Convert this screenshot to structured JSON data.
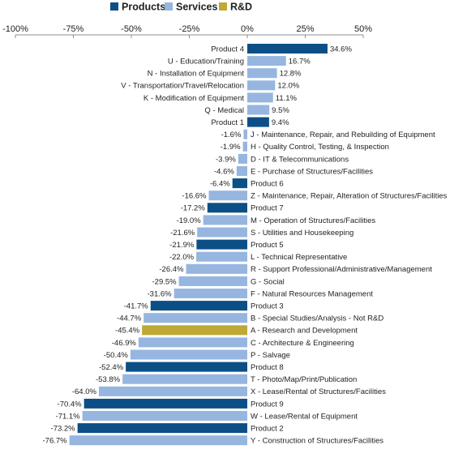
{
  "chart_data": {
    "type": "bar",
    "orientation": "horizontal",
    "xlim": [
      -100,
      50
    ],
    "x_ticks": [
      "-100%",
      "-75%",
      "-50%",
      "-25%",
      "0%",
      "25%",
      "50%"
    ],
    "x_tick_values": [
      -100,
      -75,
      -50,
      -25,
      0,
      25,
      50
    ],
    "legend_position": "top",
    "grid": false,
    "colors": {
      "Products": "#0c4f86",
      "Services": "#96b6e0",
      "R&D": "#bea836"
    },
    "legend": [
      {
        "name": "Products",
        "color": "#0c4f86"
      },
      {
        "name": "Services",
        "color": "#96b6e0"
      },
      {
        "name": "R&D",
        "color": "#bea836"
      }
    ],
    "bars": [
      {
        "category": "Product 4",
        "value": 34.6,
        "label": "34.6%",
        "group": "Products"
      },
      {
        "category": "U - Education/Training",
        "value": 16.7,
        "label": "16.7%",
        "group": "Services"
      },
      {
        "category": "N - Installation of Equipment",
        "value": 12.8,
        "label": "12.8%",
        "group": "Services"
      },
      {
        "category": "V - Transportation/Travel/Relocation",
        "value": 12.0,
        "label": "12.0%",
        "group": "Services"
      },
      {
        "category": "K - Modification of Equipment",
        "value": 11.1,
        "label": "11.1%",
        "group": "Services"
      },
      {
        "category": "Q - Medical",
        "value": 9.5,
        "label": "9.5%",
        "group": "Services"
      },
      {
        "category": "Product 1",
        "value": 9.4,
        "label": "9.4%",
        "group": "Products"
      },
      {
        "category": "J - Maintenance, Repair, and Rebuilding of Equipment",
        "value": -1.6,
        "label": "-1.6%",
        "group": "Services"
      },
      {
        "category": "H - Quality Control, Testing, & Inspection",
        "value": -1.9,
        "label": "-1.9%",
        "group": "Services"
      },
      {
        "category": "D - IT & Telecommunications",
        "value": -3.9,
        "label": "-3.9%",
        "group": "Services"
      },
      {
        "category": "E - Purchase of Structures/Facilities",
        "value": -4.6,
        "label": "-4.6%",
        "group": "Services"
      },
      {
        "category": "Product 6",
        "value": -6.4,
        "label": "-6.4%",
        "group": "Products"
      },
      {
        "category": "Z - Maintenance, Repair, Alteration of Structures/Facilities",
        "value": -16.6,
        "label": "-16.6%",
        "group": "Services"
      },
      {
        "category": "Product 7",
        "value": -17.2,
        "label": "-17.2%",
        "group": "Products"
      },
      {
        "category": "M - Operation of Structures/Facilities",
        "value": -19.0,
        "label": "-19.0%",
        "group": "Services"
      },
      {
        "category": "S - Utilities and Housekeeping",
        "value": -21.6,
        "label": "-21.6%",
        "group": "Services"
      },
      {
        "category": "Product 5",
        "value": -21.9,
        "label": "-21.9%",
        "group": "Products"
      },
      {
        "category": "L - Technical Representative",
        "value": -22.0,
        "label": "-22.0%",
        "group": "Services"
      },
      {
        "category": "R - Support Professional/Administrative/Management",
        "value": -26.4,
        "label": "-26.4%",
        "group": "Services"
      },
      {
        "category": "G - Social",
        "value": -29.5,
        "label": "-29.5%",
        "group": "Services"
      },
      {
        "category": "F - Natural Resources Management",
        "value": -31.6,
        "label": "-31.6%",
        "group": "Services"
      },
      {
        "category": "Product 3",
        "value": -41.7,
        "label": "-41.7%",
        "group": "Products"
      },
      {
        "category": "B - Special Studies/Analysis - Not R&D",
        "value": -44.7,
        "label": "-44.7%",
        "group": "Services"
      },
      {
        "category": "A - Research and Development",
        "value": -45.4,
        "label": "-45.4%",
        "group": "R&D"
      },
      {
        "category": "C - Architecture & Engineering",
        "value": -46.9,
        "label": "-46.9%",
        "group": "Services"
      },
      {
        "category": "P - Salvage",
        "value": -50.4,
        "label": "-50.4%",
        "group": "Services"
      },
      {
        "category": "Product 8",
        "value": -52.4,
        "label": "-52.4%",
        "group": "Products"
      },
      {
        "category": "T - Photo/Map/Print/Publication",
        "value": -53.8,
        "label": "-53.8%",
        "group": "Services"
      },
      {
        "category": "X - Lease/Rental of Structures/Facilities",
        "value": -64.0,
        "label": "-64.0%",
        "group": "Services"
      },
      {
        "category": "Product 9",
        "value": -70.4,
        "label": "-70.4%",
        "group": "Products"
      },
      {
        "category": "W - Lease/Rental of Equipment",
        "value": -71.1,
        "label": "-71.1%",
        "group": "Services"
      },
      {
        "category": "Product 2",
        "value": -73.2,
        "label": "-73.2%",
        "group": "Products"
      },
      {
        "category": "Y - Construction of Structures/Facilities",
        "value": -76.7,
        "label": "-76.7%",
        "group": "Services"
      }
    ]
  }
}
